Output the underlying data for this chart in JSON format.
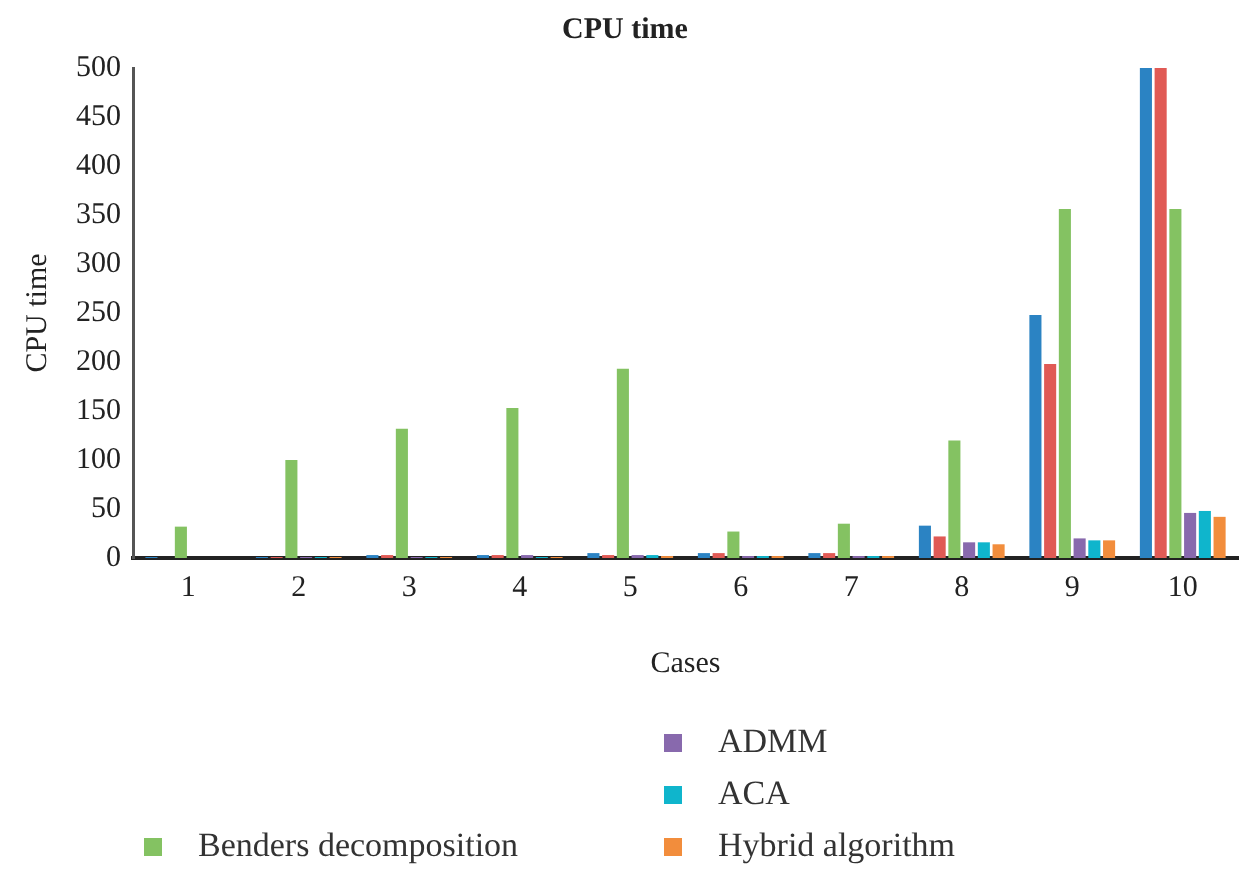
{
  "chart_data": {
    "type": "bar",
    "title": "CPU time",
    "xlabel": "Cases",
    "ylabel": "CPU time",
    "categories": [
      "1",
      "2",
      "3",
      "4",
      "5",
      "6",
      "7",
      "8",
      "9",
      "10"
    ],
    "series": [
      {
        "color": "#2b83c3",
        "values": [
          1,
          1,
          3,
          3,
          5,
          5,
          5,
          33,
          248,
          500
        ]
      },
      {
        "color": "#e05a55",
        "values": [
          0,
          1,
          3,
          3,
          3,
          5,
          5,
          22,
          198,
          500
        ]
      },
      {
        "name": "Benders decomposition",
        "color": "#84c262",
        "values": [
          32,
          100,
          132,
          153,
          193,
          27,
          35,
          120,
          356,
          356
        ]
      },
      {
        "name": "ADMM",
        "color": "#8869ad",
        "values": [
          0,
          1,
          1,
          3,
          3,
          2,
          2,
          16,
          20,
          46
        ]
      },
      {
        "name": "ACA",
        "color": "#0fb5cc",
        "values": [
          0,
          1,
          1,
          1,
          3,
          2,
          2,
          16,
          18,
          48
        ]
      },
      {
        "name": "Hybrid algorithm",
        "color": "#f28d3c",
        "values": [
          0,
          1,
          1,
          1,
          2,
          2,
          2,
          14,
          18,
          42
        ]
      }
    ],
    "ylim": [
      0,
      500
    ],
    "yticks": [
      0,
      50,
      100,
      150,
      200,
      250,
      300,
      350,
      400,
      450,
      500
    ],
    "grid": false,
    "legend": "bottom"
  }
}
